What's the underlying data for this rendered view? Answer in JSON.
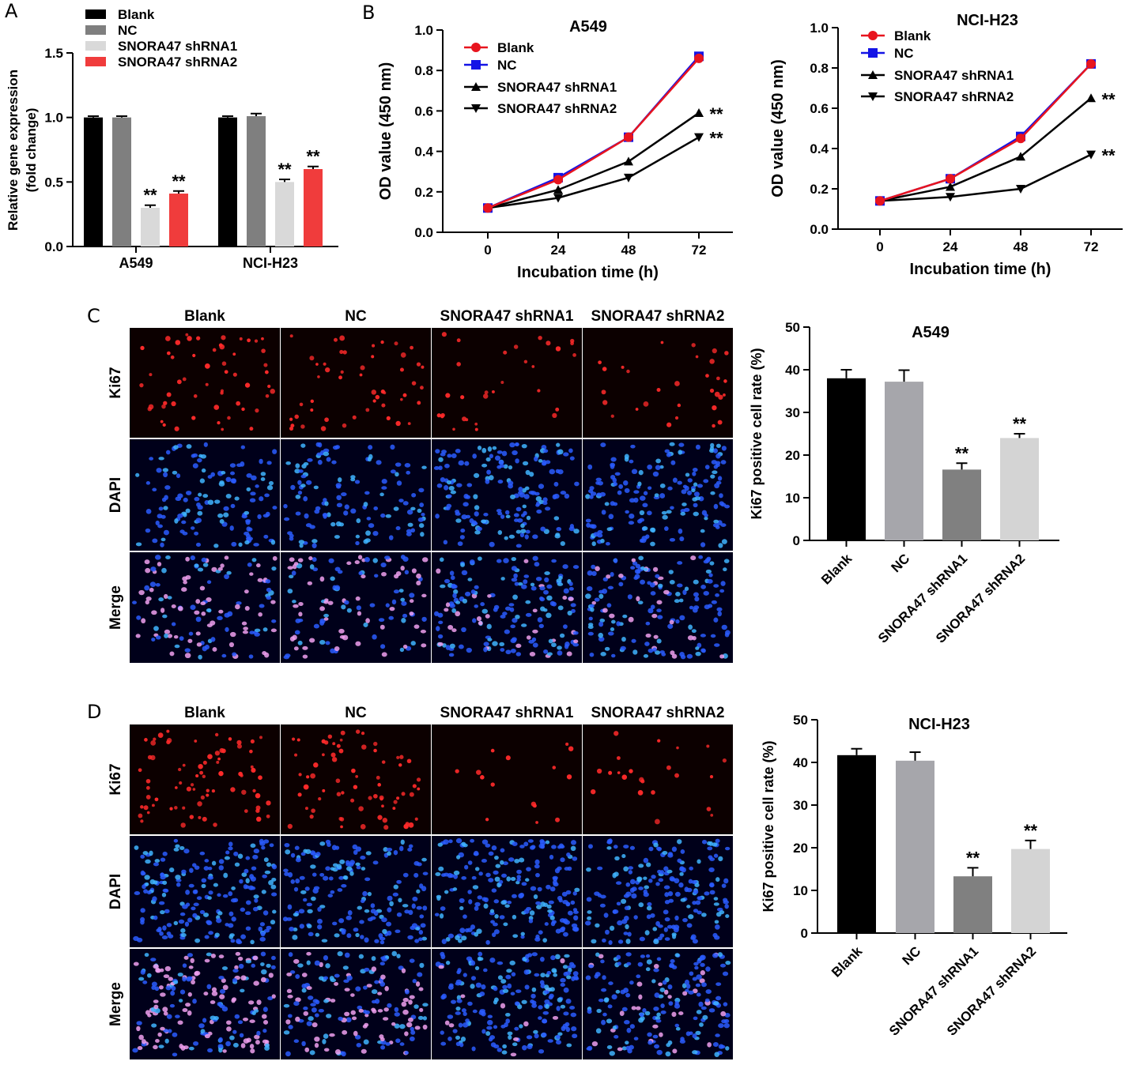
{
  "panels": {
    "a": "A",
    "b": "B",
    "c": "C",
    "d": "D"
  },
  "colors": {
    "blank": "#000000",
    "nc_gray": "#7f7f7f",
    "sh1_light": "#d9d9d9",
    "sh2_red": "#f03c3c",
    "line_red": "#e8141e",
    "line_blue": "#1414e6",
    "nc_bar_light": "#a6a6ab",
    "sh1_bar_dark": "#808080",
    "sh2_bar_light": "#d4d4d4"
  },
  "chart_data": [
    {
      "id": "A",
      "type": "bar",
      "categories": [
        "A549",
        "NCI-H23"
      ],
      "series": [
        {
          "name": "Blank",
          "values": [
            1.0,
            1.0
          ],
          "errors": [
            0.01,
            0.01
          ]
        },
        {
          "name": "NC",
          "values": [
            1.0,
            1.01
          ],
          "errors": [
            0.01,
            0.02
          ]
        },
        {
          "name": "SNORA47 shRNA1",
          "values": [
            0.3,
            0.5
          ],
          "errors": [
            0.02,
            0.02
          ]
        },
        {
          "name": "SNORA47 shRNA2",
          "values": [
            0.41,
            0.6
          ],
          "errors": [
            0.02,
            0.02
          ]
        }
      ],
      "significance": [
        [
          "",
          "",
          "**",
          "**"
        ],
        [
          "",
          "",
          "**",
          "**"
        ]
      ],
      "ylabel_line1": "Relative gene expression",
      "ylabel_line2": "(fold change)",
      "ylim": [
        0,
        1.5
      ],
      "yticks": [
        "0.0",
        "0.5",
        "1.0",
        "1.5"
      ]
    },
    {
      "id": "B1",
      "type": "line",
      "title": "A549",
      "x": [
        0,
        24,
        48,
        72
      ],
      "xticks": [
        "0",
        "24",
        "48",
        "72"
      ],
      "series": [
        {
          "name": "Blank",
          "values": [
            0.12,
            0.26,
            0.47,
            0.86
          ]
        },
        {
          "name": "NC",
          "values": [
            0.12,
            0.27,
            0.47,
            0.87
          ]
        },
        {
          "name": "SNORA47 shRNA1",
          "values": [
            0.12,
            0.21,
            0.35,
            0.59
          ]
        },
        {
          "name": "SNORA47 shRNA2",
          "values": [
            0.12,
            0.17,
            0.27,
            0.47
          ]
        }
      ],
      "significance": [
        "",
        "",
        "**",
        "**"
      ],
      "xlabel": "Incubation time (h)",
      "ylabel": "OD value (450 nm)",
      "ylim": [
        0,
        1.0
      ],
      "yticks": [
        "0.0",
        "0.2",
        "0.4",
        "0.6",
        "0.8",
        "1.0"
      ]
    },
    {
      "id": "B2",
      "type": "line",
      "title": "NCI-H23",
      "x": [
        0,
        24,
        48,
        72
      ],
      "xticks": [
        "0",
        "24",
        "48",
        "72"
      ],
      "series": [
        {
          "name": "Blank",
          "values": [
            0.14,
            0.25,
            0.45,
            0.82
          ]
        },
        {
          "name": "NC",
          "values": [
            0.14,
            0.25,
            0.46,
            0.82
          ]
        },
        {
          "name": "SNORA47 shRNA1",
          "values": [
            0.14,
            0.21,
            0.36,
            0.65
          ]
        },
        {
          "name": "SNORA47 shRNA2",
          "values": [
            0.14,
            0.16,
            0.2,
            0.37
          ]
        }
      ],
      "significance": [
        "",
        "",
        "**",
        "**"
      ],
      "xlabel": "Incubation time (h)",
      "ylabel": "OD value (450 nm)",
      "ylim": [
        0,
        1.0
      ],
      "yticks": [
        "0.0",
        "0.2",
        "0.4",
        "0.6",
        "0.8",
        "1.0"
      ]
    },
    {
      "id": "C2",
      "type": "bar",
      "title": "A549",
      "categories": [
        "Blank",
        "NC",
        "SNORA47 shRNA1",
        "SNORA47 shRNA2"
      ],
      "values": [
        38,
        37.2,
        16.6,
        24
      ],
      "errors": [
        2.0,
        2.7,
        1.5,
        1.0
      ],
      "significance": [
        "",
        "",
        "**",
        "**"
      ],
      "ylabel": "Ki67 positive cell rate (%)",
      "ylim": [
        0,
        50
      ],
      "yticks": [
        "0",
        "10",
        "20",
        "30",
        "40",
        "50"
      ]
    },
    {
      "id": "D2",
      "type": "bar",
      "title": "NCI-H23",
      "categories": [
        "Blank",
        "NC",
        "SNORA47 shRNA1",
        "SNORA47 shRNA2"
      ],
      "values": [
        41.7,
        40.4,
        13.3,
        19.7
      ],
      "errors": [
        1.5,
        2.0,
        2.0,
        2.0
      ],
      "significance": [
        "",
        "",
        "**",
        "**"
      ],
      "ylabel": "Ki67 positive cell rate (%)",
      "ylim": [
        0,
        50
      ],
      "yticks": [
        "0",
        "10",
        "20",
        "30",
        "40",
        "50"
      ]
    }
  ],
  "microscopy": {
    "columns": [
      "Blank",
      "NC",
      "SNORA47 shRNA1",
      "SNORA47 shRNA2"
    ],
    "rows": [
      "Ki67",
      "DAPI",
      "Merge"
    ]
  }
}
